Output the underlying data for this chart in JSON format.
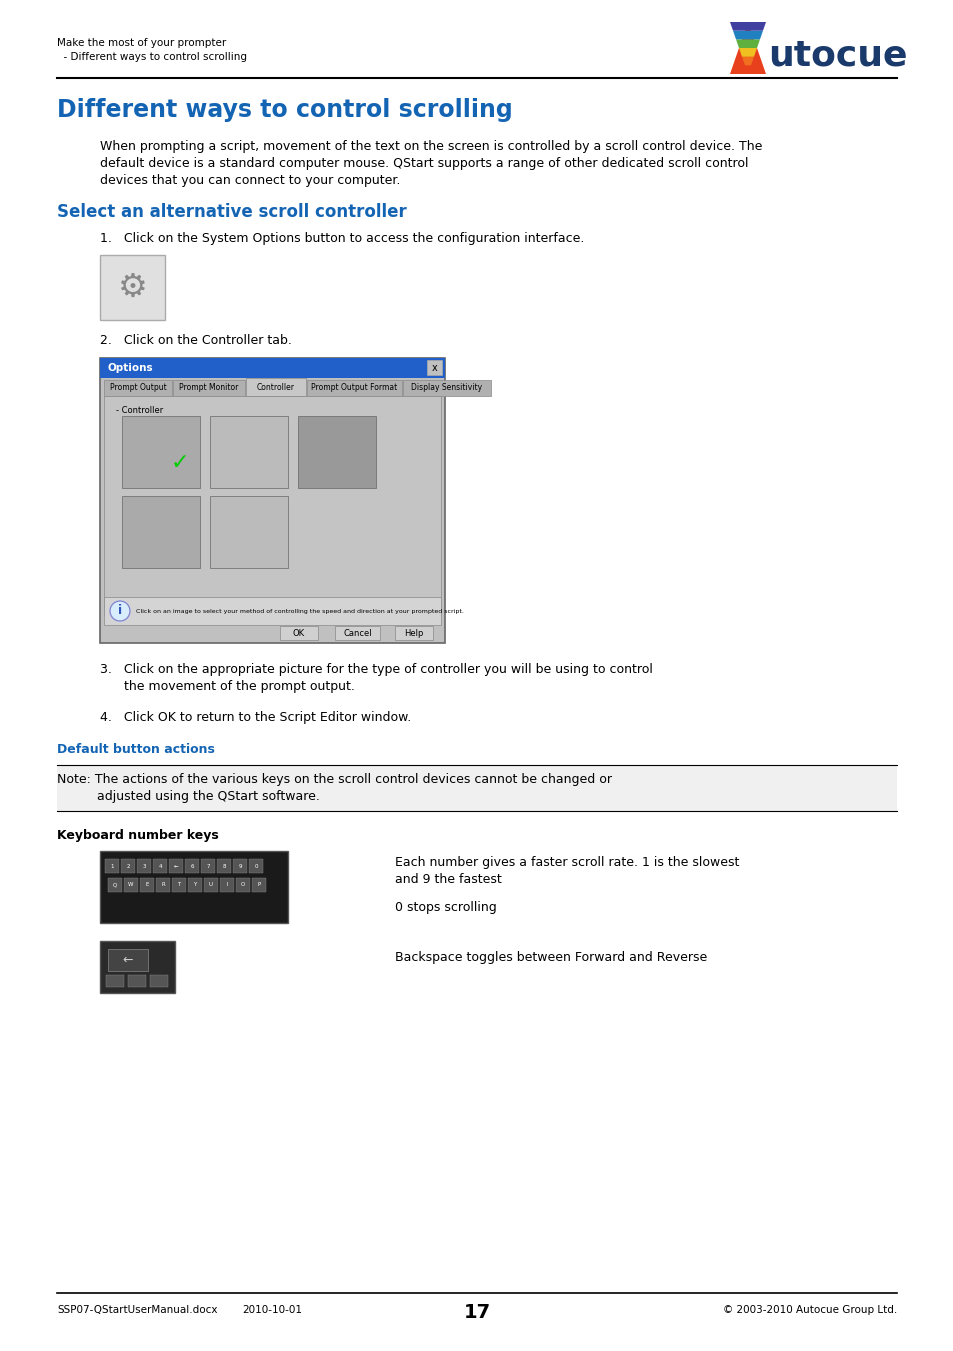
{
  "page_width": 9.54,
  "page_height": 13.51,
  "bg_color": "#ffffff",
  "header_line1": "Make the most of your prompter",
  "header_line2": "  - Different ways to control scrolling",
  "header_font_color": "#000000",
  "logo_text": "utocue",
  "logo_A_color": "#1a3a6b",
  "logo_text_color": "#1a3a6b",
  "main_title": "Different ways to control scrolling",
  "main_title_color": "#1464b4",
  "main_title_fontsize": 17,
  "section_title": "Select an alternative scroll controller",
  "section_title_color": "#1464b4",
  "section_title_fontsize": 12,
  "body_text_line1": "When prompting a script, movement of the text on the screen is controlled by a scroll control device. The",
  "body_text_line2": "default device is a standard computer mouse. QStart supports a range of other dedicated scroll control",
  "body_text_line3": "devices that you can connect to your computer.",
  "body_fontsize": 9,
  "body_color": "#000000",
  "step1_text": "1.   Click on the System Options button to access the configuration interface.",
  "step2_text": "2.   Click on the Controller tab.",
  "step3_line1": "3.   Click on the appropriate picture for the type of controller you will be using to control",
  "step3_line2": "      the movement of the prompt output.",
  "step4_text": "4.   Click OK to return to the Script Editor window.",
  "subsection_title": "Default button actions",
  "subsection_color": "#1464b4",
  "subsection_fontsize": 9,
  "note_text_line1": "Note: The actions of the various keys on the scroll control devices cannot be changed or",
  "note_text_line2": "      adjusted using the QStart software.",
  "keyboard_section_title": "Keyboard number keys",
  "keyboard_fontsize": 9,
  "keyboard_desc1_line1": "Each number gives a faster scroll rate. 1 is the slowest",
  "keyboard_desc1_line2": "and 9 the fastest",
  "keyboard_desc2": "0 stops scrolling",
  "keyboard_desc3": "Backspace toggles between Forward and Reverse",
  "footer_left1": "SSP07-QStartUserManual.docx",
  "footer_left2": "2010-10-01",
  "footer_center": "17",
  "footer_right": "© 2003-2010 Autocue Group Ltd.",
  "footer_fontsize": 7.5,
  "footer_color": "#000000",
  "dialog_tabs": [
    "Prompt Output",
    "Prompt Monitor",
    "Controller",
    "Prompt Output Format",
    "Display Sensitivity"
  ],
  "dialog_info_text": "Click on an image to select your method of controlling the speed and direction at your prompted script."
}
